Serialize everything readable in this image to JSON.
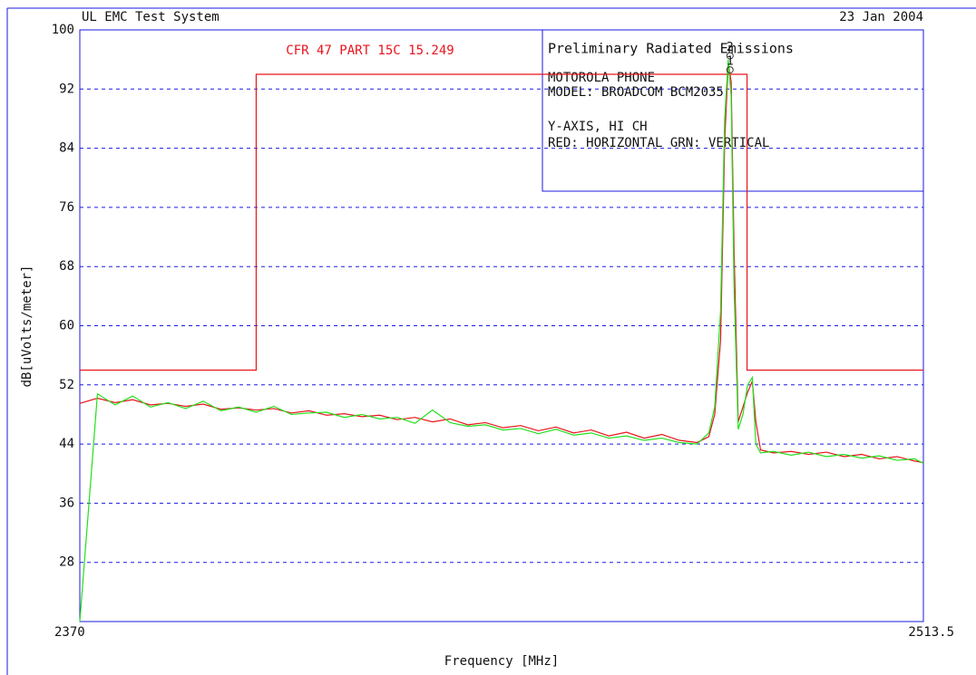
{
  "chart_data": {
    "type": "line",
    "header_left": "UL EMC Test System",
    "header_right": "23 Jan 2004",
    "limit_label": "CFR 47 PART 15C 15.249",
    "info": [
      "Preliminary Radiated Emissions",
      "MOTOROLA PHONE",
      "MODEL: BROADCOM BCM2035",
      "Y-AXIS, HI CH",
      "RED: HORIZONTAL  GRN: VERTICAL"
    ],
    "x_label": "Frequency [MHz]",
    "y_label": "dB[uVolts/meter]",
    "xlim": [
      2370,
      2513.5
    ],
    "xticks": [
      2370,
      2513.5
    ],
    "ylim": [
      20,
      100
    ],
    "yticks": [
      28,
      36,
      44,
      52,
      60,
      68,
      76,
      84,
      92,
      100
    ],
    "grid": true,
    "x": [
      2370,
      2373,
      2376,
      2379,
      2382,
      2385,
      2388,
      2391,
      2394,
      2397,
      2400,
      2403,
      2406,
      2409,
      2412,
      2415,
      2418,
      2421,
      2424,
      2427,
      2430,
      2433,
      2436,
      2439,
      2442,
      2445,
      2448,
      2451,
      2454,
      2457,
      2460,
      2463,
      2466,
      2469,
      2472,
      2475,
      2477,
      2478,
      2479,
      2479.7,
      2480.3,
      2480.8,
      2481.3,
      2482,
      2482.8,
      2483.6,
      2484.4,
      2485,
      2485.8,
      2488,
      2491,
      2494,
      2497,
      2500,
      2503,
      2506,
      2509,
      2512,
      2513.5
    ],
    "series": [
      {
        "color": "#e8141c",
        "values": [
          49.5,
          50.2,
          49.6,
          50,
          49.3,
          49.5,
          49.1,
          49.4,
          48.7,
          48.9,
          48.6,
          48.8,
          48.2,
          48.5,
          47.9,
          48.1,
          47.7,
          47.9,
          47.3,
          47.6,
          47,
          47.4,
          46.6,
          46.9,
          46.2,
          46.5,
          45.8,
          46.3,
          45.5,
          45.9,
          45.1,
          45.6,
          44.8,
          45.3,
          44.5,
          44.2,
          45,
          48,
          58,
          85,
          95.5,
          93,
          70,
          47,
          49,
          51,
          52.5,
          47,
          43.2,
          42.8,
          43,
          42.6,
          42.9,
          42.3,
          42.6,
          42,
          42.3,
          41.7,
          41.5
        ]
      },
      {
        "color": "#22e01c",
        "values": [
          20,
          50.8,
          49.3,
          50.5,
          49,
          49.6,
          48.8,
          49.8,
          48.5,
          49,
          48.3,
          49.1,
          48,
          48.2,
          48.3,
          47.6,
          48,
          47.4,
          47.6,
          46.8,
          48.6,
          46.9,
          46.4,
          46.6,
          45.9,
          46.1,
          45.4,
          46,
          45.2,
          45.5,
          44.8,
          45.1,
          44.5,
          44.8,
          44.2,
          44,
          45.5,
          49,
          62,
          88,
          96,
          91,
          65,
          46,
          48,
          52,
          53,
          44,
          42.8,
          43,
          42.5,
          42.9,
          42.3,
          42.6,
          42.1,
          42.4,
          41.8,
          42,
          41.4
        ]
      }
    ],
    "limit": {
      "color": "#e8141c",
      "x": [
        2370,
        2400,
        2400,
        2483.5,
        2483.5,
        2513.5
      ],
      "values": [
        54,
        54,
        94,
        94,
        54,
        54
      ]
    },
    "markers": [
      {
        "label": "2",
        "x": 2480.6,
        "value": 96.5
      },
      {
        "label": "1",
        "x": 2480.6,
        "value": 94.6
      }
    ],
    "frame_color": "#1a1ae0"
  }
}
